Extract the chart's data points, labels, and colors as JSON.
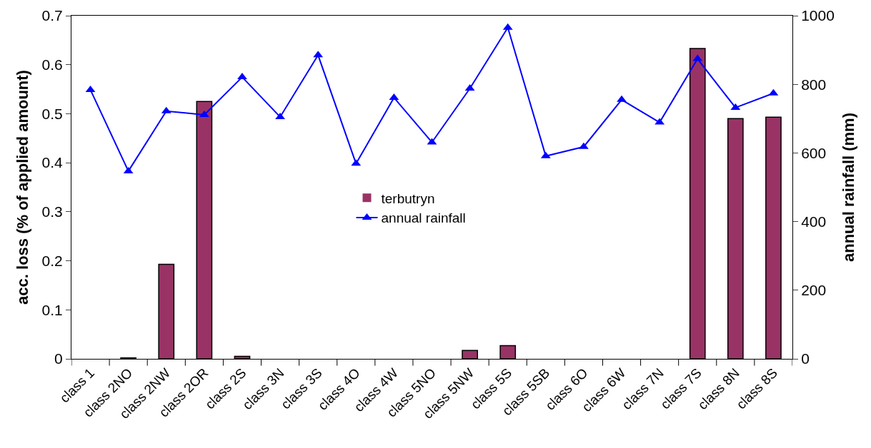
{
  "chart_data": {
    "type": "bar",
    "xlabel": null,
    "ylabel": "acc. loss (% of applied amount)",
    "y2label": "annual rainfall (mm)",
    "categories": [
      "class 1",
      "class 2NO",
      "class 2NW",
      "class 2OR",
      "class 2S",
      "class 3N",
      "class 3S",
      "class 4O",
      "class 4W",
      "class 5NO",
      "class 5NW",
      "class 5S",
      "class 5SB",
      "class 6O",
      "class 6W",
      "class 7N",
      "class 7S",
      "class 8N",
      "class 8S"
    ],
    "series": [
      {
        "name": "terbutryn",
        "color": "#993366",
        "values": [
          0,
          0.002,
          0.193,
          0.525,
          0.005,
          0,
          0,
          0,
          0,
          0,
          0.017,
          0.027,
          0,
          0,
          0,
          0,
          0.633,
          0.49,
          0.493
        ]
      },
      {
        "name": "annual rainfall",
        "type": "line",
        "axis": "y2",
        "color": "#0000ff",
        "marker": "triangle",
        "values": [
          784,
          547,
          722,
          711,
          821,
          705,
          885,
          569,
          761,
          631,
          788,
          965,
          591,
          618,
          755,
          689,
          874,
          732,
          774
        ]
      }
    ],
    "ylim": [
      0,
      0.7
    ],
    "yticks": [
      0,
      0.1,
      0.2,
      0.3,
      0.4,
      0.5,
      0.6,
      0.7
    ],
    "y2lim": [
      0,
      1000
    ],
    "y2ticks": [
      0,
      200,
      400,
      600,
      800,
      1000
    ],
    "grid": false,
    "legend": "center"
  }
}
